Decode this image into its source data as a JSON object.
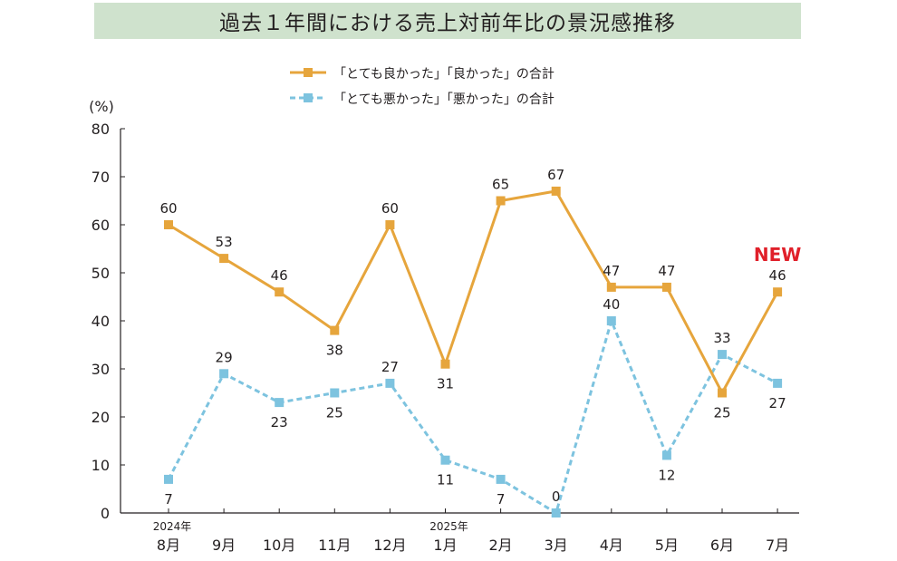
{
  "title": "過去１年間における売上対前年比の景況感推移",
  "colors": {
    "good": "#e6a53c",
    "bad": "#7dc3df",
    "new": "#e0202a",
    "title_bg": "#cfe2cd"
  },
  "chart_data": {
    "type": "line",
    "title": "過去１年間における売上対前年比の景況感推移",
    "ylabel": "(%)",
    "ylim": [
      0,
      80
    ],
    "yticks": [
      0,
      10,
      20,
      30,
      40,
      50,
      60,
      70,
      80
    ],
    "categories": [
      "8月",
      "9月",
      "10月",
      "11月",
      "12月",
      "1月",
      "2月",
      "3月",
      "4月",
      "5月",
      "6月",
      "7月"
    ],
    "year_labels": {
      "0": "2024年",
      "5": "2025年"
    },
    "series": [
      {
        "name": "「とても良かった」「良かった」の合計",
        "style": "solid",
        "color": "#e6a53c",
        "values": [
          60,
          53,
          46,
          38,
          60,
          31,
          65,
          67,
          47,
          47,
          25,
          46
        ]
      },
      {
        "name": "「とても悪かった」「悪かった」の合計",
        "style": "dashed",
        "color": "#7dc3df",
        "values": [
          7,
          29,
          23,
          25,
          27,
          11,
          7,
          0,
          40,
          12,
          33,
          27
        ]
      }
    ],
    "annotations": [
      {
        "text": "NEW",
        "category_index": 11,
        "color": "#e0202a"
      }
    ],
    "grid": false,
    "legend_position": "top"
  }
}
